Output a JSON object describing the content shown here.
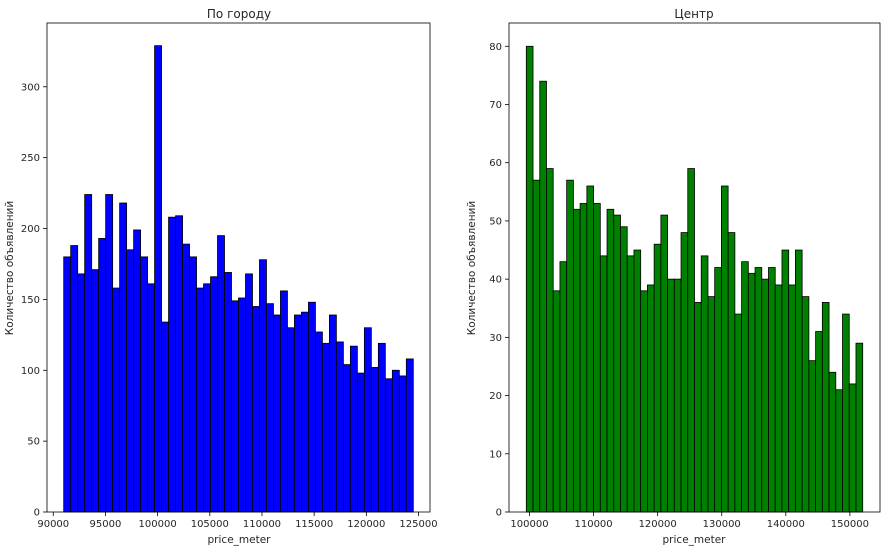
{
  "chart_data": [
    {
      "type": "bar",
      "title": "По городу",
      "xlabel": "price_meter",
      "ylabel": "Количество объявлений",
      "bar_color": "#0000ff",
      "edge_color": "#000000",
      "grid": false,
      "xlim": [
        89400,
        126100
      ],
      "ylim": [
        0,
        345
      ],
      "xticks": [
        90000,
        95000,
        100000,
        105000,
        110000,
        115000,
        120000,
        125000
      ],
      "yticks": [
        0,
        50,
        100,
        150,
        200,
        250,
        300
      ],
      "bin_start": 91000,
      "bin_end": 124500,
      "values": [
        180,
        188,
        168,
        224,
        171,
        193,
        224,
        158,
        218,
        185,
        199,
        180,
        161,
        329,
        134,
        208,
        209,
        189,
        180,
        158,
        161,
        166,
        195,
        169,
        149,
        151,
        168,
        145,
        178,
        147,
        139,
        156,
        130,
        139,
        141,
        148,
        127,
        119,
        139,
        120,
        104,
        117,
        98,
        130,
        102,
        119,
        94,
        100,
        96,
        108
      ]
    },
    {
      "type": "bar",
      "title": "Центр",
      "xlabel": "price_meter",
      "ylabel": "Количество объявлений",
      "bar_color": "#008000",
      "edge_color": "#000000",
      "grid": false,
      "xlim": [
        96800,
        154700
      ],
      "ylim": [
        0,
        84
      ],
      "xticks": [
        100000,
        110000,
        120000,
        130000,
        140000,
        150000
      ],
      "yticks": [
        0,
        10,
        20,
        30,
        40,
        50,
        60,
        70,
        80
      ],
      "bin_start": 99500,
      "bin_end": 152000,
      "values": [
        80,
        57,
        74,
        59,
        38,
        43,
        57,
        52,
        53,
        56,
        53,
        44,
        52,
        51,
        49,
        44,
        45,
        38,
        39,
        46,
        51,
        40,
        40,
        48,
        59,
        36,
        44,
        37,
        42,
        56,
        48,
        34,
        43,
        41,
        42,
        40,
        42,
        39,
        45,
        39,
        45,
        37,
        26,
        31,
        36,
        24,
        21,
        34,
        22,
        29
      ]
    }
  ]
}
